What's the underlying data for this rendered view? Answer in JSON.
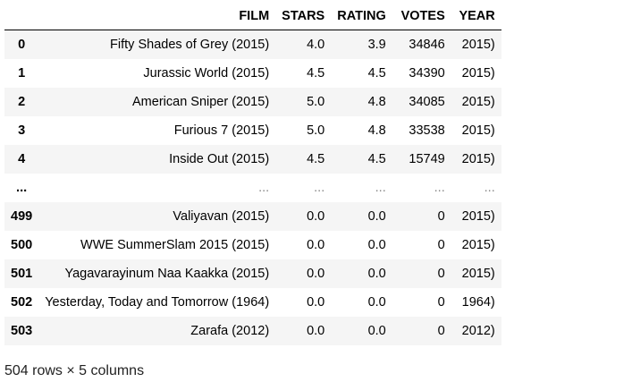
{
  "table": {
    "index_header": "",
    "columns": [
      "FILM",
      "STARS",
      "RATING",
      "VOTES",
      "YEAR"
    ],
    "rows": [
      {
        "index": "0",
        "film": "Fifty Shades of Grey (2015)",
        "stars": "4.0",
        "rating": "3.9",
        "votes": "34846",
        "year": "2015)"
      },
      {
        "index": "1",
        "film": "Jurassic World (2015)",
        "stars": "4.5",
        "rating": "4.5",
        "votes": "34390",
        "year": "2015)"
      },
      {
        "index": "2",
        "film": "American Sniper (2015)",
        "stars": "5.0",
        "rating": "4.8",
        "votes": "34085",
        "year": "2015)"
      },
      {
        "index": "3",
        "film": "Furious 7 (2015)",
        "stars": "5.0",
        "rating": "4.8",
        "votes": "33538",
        "year": "2015)"
      },
      {
        "index": "4",
        "film": "Inside Out (2015)",
        "stars": "4.5",
        "rating": "4.5",
        "votes": "15749",
        "year": "2015)"
      },
      {
        "index": "...",
        "film": "...",
        "stars": "...",
        "rating": "...",
        "votes": "...",
        "year": "..."
      },
      {
        "index": "499",
        "film": "Valiyavan (2015)",
        "stars": "0.0",
        "rating": "0.0",
        "votes": "0",
        "year": "2015)"
      },
      {
        "index": "500",
        "film": "WWE SummerSlam 2015 (2015)",
        "stars": "0.0",
        "rating": "0.0",
        "votes": "0",
        "year": "2015)"
      },
      {
        "index": "501",
        "film": "Yagavarayinum Naa Kaakka (2015)",
        "stars": "0.0",
        "rating": "0.0",
        "votes": "0",
        "year": "2015)"
      },
      {
        "index": "502",
        "film": "Yesterday, Today and Tomorrow (1964)",
        "stars": "0.0",
        "rating": "0.0",
        "votes": "0",
        "year": "1964)"
      },
      {
        "index": "503",
        "film": "Zarafa (2012)",
        "stars": "0.0",
        "rating": "0.0",
        "votes": "0",
        "year": "2012)"
      }
    ]
  },
  "summary": "504 rows × 5 columns"
}
